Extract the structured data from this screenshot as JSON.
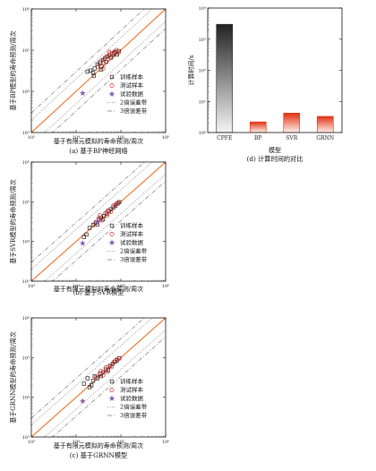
{
  "chart_data": [
    {
      "type": "scatter",
      "xlabel": "基于有限元模拟的寿命预测/周次",
      "ylabel": "基于BP模型的寿命预测/周次",
      "caption": "(a) 基于BP神经网络",
      "xscale": "log",
      "yscale": "log",
      "xlim": [
        1000,
        1000000
      ],
      "ylim": [
        1000,
        1000000
      ],
      "xticks": [
        "10³",
        "10⁴",
        "10⁵",
        "10⁶"
      ],
      "yticks": [
        "10³",
        "10⁴",
        "10⁵",
        "10⁶"
      ],
      "legend_position": "right",
      "legend": [
        "训练样本",
        "测试样本",
        "试验数据",
        "2倍误差带",
        "3倍误差带"
      ],
      "series": [
        {
          "name": "训练样本",
          "marker": "square",
          "color": "#222222",
          "points": [
            [
              18000,
              30000
            ],
            [
              21000,
              32000
            ],
            [
              24000,
              28000
            ],
            [
              26000,
              36000
            ],
            [
              30000,
              45000
            ],
            [
              34000,
              50000
            ],
            [
              37000,
              40000
            ],
            [
              40000,
              58000
            ],
            [
              44000,
              62000
            ],
            [
              47000,
              52000
            ],
            [
              50000,
              70000
            ],
            [
              55000,
              75000
            ],
            [
              60000,
              66000
            ],
            [
              64000,
              80000
            ],
            [
              70000,
              85000
            ],
            [
              76000,
              90000
            ],
            [
              82000,
              78000
            ],
            [
              90000,
              95000
            ],
            [
              25000,
              24000
            ],
            [
              36000,
              34000
            ]
          ]
        },
        {
          "name": "测试样本",
          "marker": "circle",
          "color": "#e03030",
          "points": [
            [
              30000,
              40000
            ],
            [
              36000,
              55000
            ],
            [
              42000,
              48000
            ],
            [
              46000,
              68000
            ],
            [
              52000,
              60000
            ],
            [
              58000,
              82000
            ],
            [
              65000,
              72000
            ],
            [
              72000,
              92000
            ],
            [
              80000,
              100000
            ],
            [
              88000,
              86000
            ],
            [
              40000,
              36000
            ],
            [
              55000,
              90000
            ]
          ]
        },
        {
          "name": "试验数据",
          "marker": "star",
          "color": "#8a5bb0",
          "points": [
            [
              14000,
              9000
            ]
          ]
        }
      ]
    },
    {
      "type": "bar",
      "ylabel": "计算时间/s",
      "xlabel": "模型",
      "caption": "(d) 计算时间的对比",
      "yscale": "log",
      "ylim": [
        1,
        10000
      ],
      "yticks": [
        "10⁰",
        "10¹",
        "10²",
        "10³",
        "10⁴"
      ],
      "categories": [
        "CPFE",
        "BP",
        "SVR",
        "GRNN"
      ],
      "values": [
        3000,
        2.2,
        4.2,
        3.3
      ],
      "bar_style": [
        {
          "top": "#222222",
          "bottom": "#f5f5f5"
        },
        {
          "top": "#e03010",
          "bottom": "#fff2ec"
        },
        {
          "top": "#e03010",
          "bottom": "#fff2ec"
        },
        {
          "top": "#e03010",
          "bottom": "#fff2ec"
        }
      ]
    },
    {
      "type": "scatter",
      "xlabel": "基于有限元模拟的寿命预测/周次",
      "ylabel": "基于SVR模型的寿命预测/周次",
      "caption": "(b) 基于SVR模型",
      "xscale": "log",
      "yscale": "log",
      "xlim": [
        1000,
        1000000
      ],
      "ylim": [
        1000,
        1000000
      ],
      "xticks": [
        "10³",
        "10⁴",
        "10⁵",
        "10⁶"
      ],
      "yticks": [
        "10³",
        "10⁴",
        "10⁵",
        "10⁶"
      ],
      "legend_position": "right",
      "legend": [
        "训练样本",
        "测试样本",
        "试验数据",
        "2倍误差带",
        "3倍误差带"
      ],
      "series": [
        {
          "name": "训练样本",
          "marker": "square",
          "color": "#222222",
          "points": [
            [
              17000,
              15000
            ],
            [
              20000,
              22000
            ],
            [
              24000,
              26000
            ],
            [
              28000,
              30000
            ],
            [
              32000,
              35000
            ],
            [
              36000,
              40000
            ],
            [
              42000,
              44000
            ],
            [
              48000,
              50000
            ],
            [
              54000,
              58000
            ],
            [
              60000,
              65000
            ],
            [
              68000,
              72000
            ],
            [
              76000,
              80000
            ],
            [
              84000,
              90000
            ],
            [
              92000,
              98000
            ],
            [
              30000,
              27000
            ],
            [
              40000,
              36000
            ],
            [
              15000,
              13000
            ]
          ]
        },
        {
          "name": "测试样本",
          "marker": "circle",
          "color": "#e03030",
          "points": [
            [
              26000,
              28000
            ],
            [
              32000,
              38000
            ],
            [
              38000,
              34000
            ],
            [
              45000,
              52000
            ],
            [
              52000,
              60000
            ],
            [
              60000,
              56000
            ],
            [
              68000,
              80000
            ],
            [
              78000,
              88000
            ],
            [
              88000,
              95000
            ],
            [
              34000,
              45000
            ],
            [
              50000,
              46000
            ]
          ]
        },
        {
          "name": "试验数据",
          "marker": "star",
          "color": "#8a5bb0",
          "points": [
            [
              14000,
              9000
            ],
            [
              30000,
              32000
            ]
          ]
        }
      ]
    },
    {
      "type": "scatter",
      "xlabel": "基于有限元模拟的寿命预测/周次",
      "ylabel": "基于GRNN模型的寿命预测/周次",
      "caption": "(c) 基于GRNN模型",
      "xscale": "log",
      "yscale": "log",
      "xlim": [
        1000,
        1000000
      ],
      "ylim": [
        1000,
        1000000
      ],
      "xticks": [
        "10³",
        "10⁴",
        "10⁵",
        "10⁶"
      ],
      "yticks": [
        "10³",
        "10⁴",
        "10⁵",
        "10⁶"
      ],
      "legend_position": "right",
      "legend": [
        "训练样本",
        "测试样本",
        "试验数据",
        "2倍误差带",
        "3倍误差带"
      ],
      "series": [
        {
          "name": "训练样本",
          "marker": "square",
          "color": "#222222",
          "points": [
            [
              15000,
              22000
            ],
            [
              18000,
              30000
            ],
            [
              22000,
              20000
            ],
            [
              26000,
              34000
            ],
            [
              30000,
              30000
            ],
            [
              34000,
              38000
            ],
            [
              40000,
              42000
            ],
            [
              46000,
              50000
            ],
            [
              52000,
              48000
            ],
            [
              58000,
              62000
            ],
            [
              66000,
              70000
            ],
            [
              74000,
              78000
            ],
            [
              82000,
              85000
            ],
            [
              92000,
              96000
            ],
            [
              24000,
              26000
            ],
            [
              36000,
              34000
            ],
            [
              20000,
              18000
            ]
          ]
        },
        {
          "name": "测试样本",
          "marker": "circle",
          "color": "#e03030",
          "points": [
            [
              28000,
              32000
            ],
            [
              34000,
              40000
            ],
            [
              40000,
              36000
            ],
            [
              46000,
              56000
            ],
            [
              54000,
              60000
            ],
            [
              62000,
              58000
            ],
            [
              70000,
              78000
            ],
            [
              80000,
              88000
            ],
            [
              90000,
              94000
            ],
            [
              36000,
              46000
            ],
            [
              50000,
              44000
            ]
          ]
        },
        {
          "name": "试验数据",
          "marker": "star",
          "color": "#8a5bb0",
          "points": [
            [
              14000,
              8000
            ]
          ]
        }
      ]
    }
  ]
}
